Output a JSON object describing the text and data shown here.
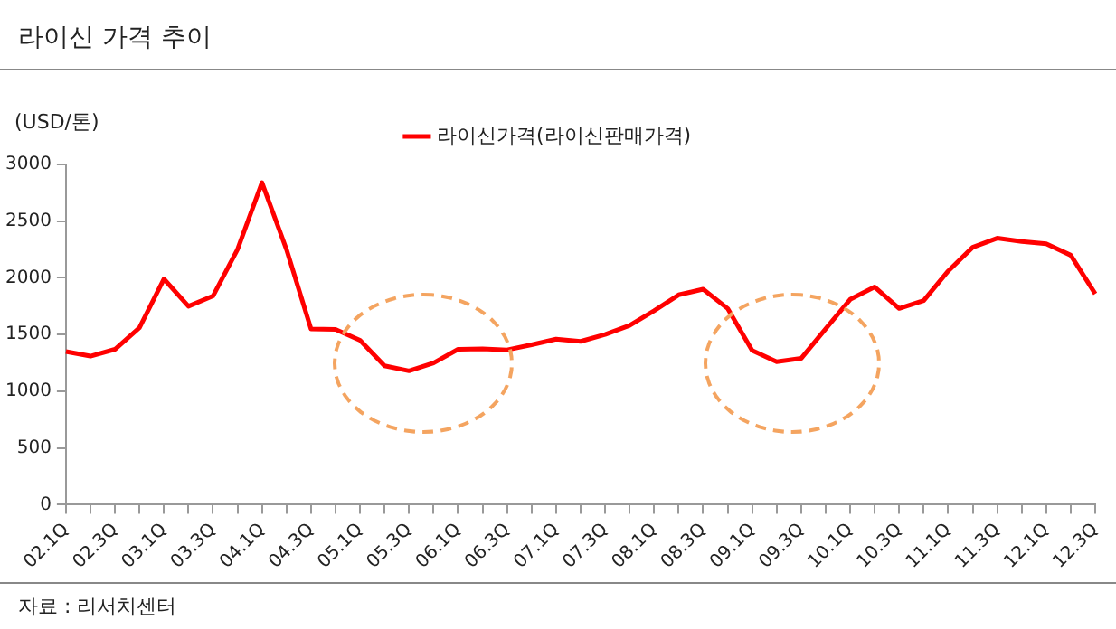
{
  "chart_data": {
    "type": "line",
    "title": "라이신 가격 추이",
    "ylabel": "(USD/톤)",
    "categories": [
      "02.1Q",
      null,
      "02.3Q",
      null,
      "03.1Q",
      null,
      "03.3Q",
      null,
      "04.1Q",
      null,
      "04.3Q",
      null,
      "05.1Q",
      null,
      "05.3Q",
      null,
      "06.1Q",
      null,
      "06.3Q",
      null,
      "07.1Q",
      null,
      "07.3Q",
      null,
      "08.1Q",
      null,
      "08.3Q",
      null,
      "09.1Q",
      null,
      "09.3Q",
      null,
      "10.1Q",
      null,
      "10.3Q",
      null,
      "11.1Q",
      null,
      "11.3Q",
      null,
      "12.1Q",
      null,
      "12.3Q"
    ],
    "series": [
      {
        "name": "라이신가격(라이신판매가격)",
        "color": "#ff0000",
        "values": [
          1350,
          1310,
          1370,
          1560,
          1990,
          1750,
          1840,
          2250,
          2840,
          2250,
          1550,
          1545,
          1450,
          1225,
          1180,
          1250,
          1370,
          1375,
          1365,
          1410,
          1460,
          1440,
          1500,
          1580,
          1710,
          1850,
          1900,
          1730,
          1360,
          1260,
          1290,
          1550,
          1810,
          1920,
          1730,
          1800,
          2060,
          2270,
          2350,
          2320,
          2300,
          2200,
          1860
        ]
      }
    ],
    "ylim": [
      0,
      3000
    ],
    "yticks": [
      0,
      500,
      1000,
      1500,
      2000,
      2500,
      3000
    ],
    "grid": false,
    "legend": "top",
    "marker": "none",
    "line_style": "solid",
    "annotations": [
      "자료 : 리서치센터"
    ]
  }
}
